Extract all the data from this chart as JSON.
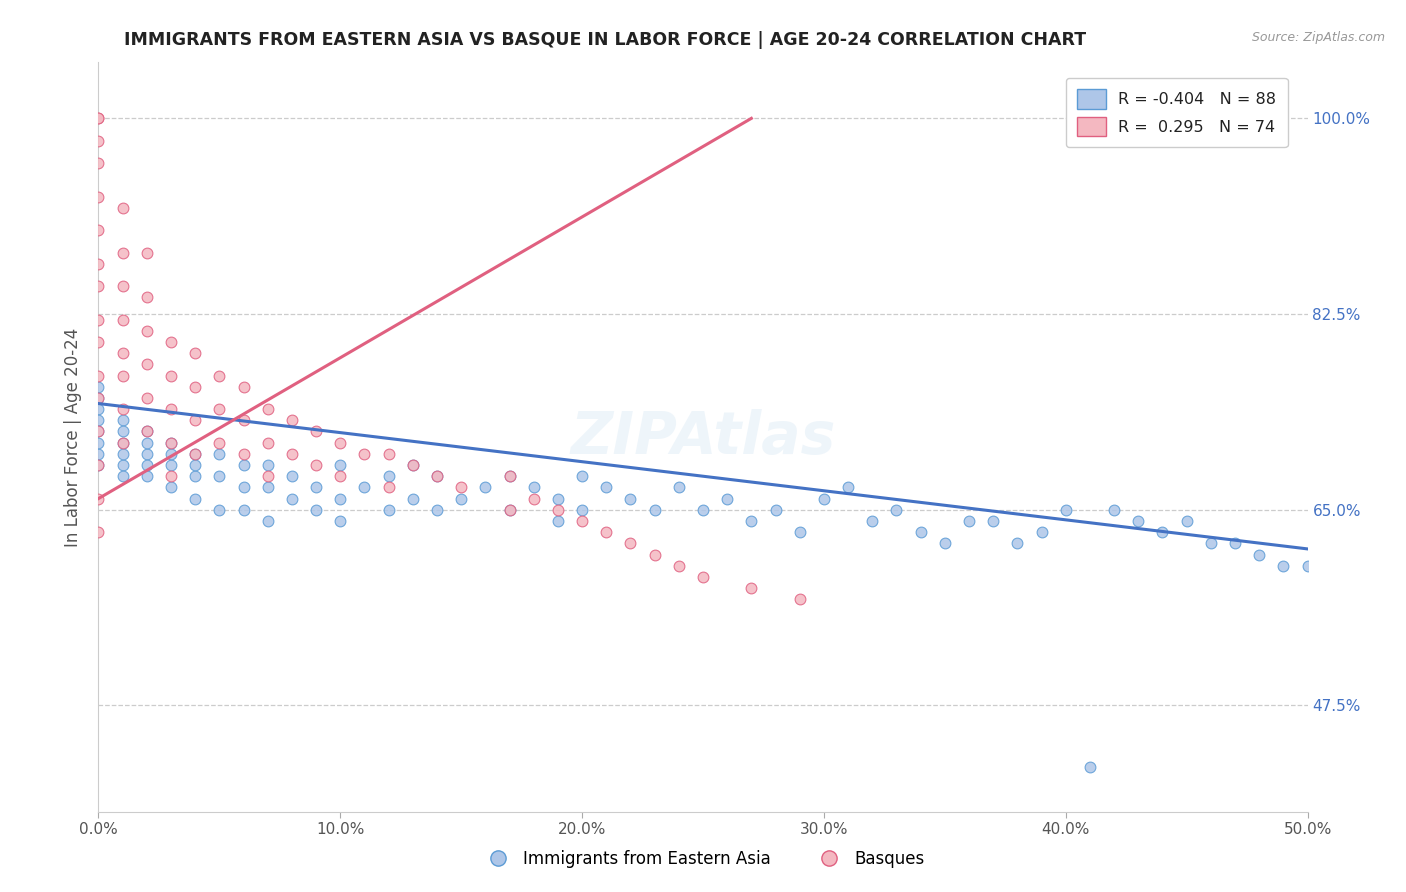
{
  "title": "IMMIGRANTS FROM EASTERN ASIA VS BASQUE IN LABOR FORCE | AGE 20-24 CORRELATION CHART",
  "source_text": "Source: ZipAtlas.com",
  "ylabel": "In Labor Force | Age 20-24",
  "xlim": [
    0.0,
    0.5
  ],
  "ylim": [
    0.38,
    1.05
  ],
  "ytick_vals": [
    0.475,
    0.65,
    0.825,
    1.0
  ],
  "ytick_labels_right": [
    "47.5%",
    "65.0%",
    "82.5%",
    "100.0%"
  ],
  "xtick_vals": [
    0.0,
    0.1,
    0.2,
    0.3,
    0.4,
    0.5
  ],
  "xtick_labels": [
    "0.0%",
    "10.0%",
    "20.0%",
    "30.0%",
    "40.0%",
    "50.0%"
  ],
  "scatter_color1": "#aec6e8",
  "scatter_edge1": "#5b9bd5",
  "scatter_color2": "#f4b8c1",
  "scatter_edge2": "#e06080",
  "line_color1": "#4472c4",
  "line_color2": "#e06080",
  "legend_color1": "#aec6e8",
  "legend_color2": "#f4b8c1",
  "legend_edge1": "#5b9bd5",
  "legend_edge2": "#e06080",
  "watermark": "ZIPAtlas",
  "background_color": "#ffffff",
  "grid_color": "#cccccc",
  "title_color": "#222222",
  "axis_label_color": "#555555",
  "tick_label_color_right": "#4472c4",
  "blue_line_x0": 0.0,
  "blue_line_x1": 0.5,
  "blue_line_y0": 0.745,
  "blue_line_y1": 0.615,
  "pink_line_x0": 0.0,
  "pink_line_x1": 0.27,
  "pink_line_y0": 0.66,
  "pink_line_y1": 1.0,
  "blue_x": [
    0.0,
    0.0,
    0.0,
    0.0,
    0.0,
    0.0,
    0.0,
    0.0,
    0.01,
    0.01,
    0.01,
    0.01,
    0.01,
    0.01,
    0.02,
    0.02,
    0.02,
    0.02,
    0.02,
    0.03,
    0.03,
    0.03,
    0.03,
    0.04,
    0.04,
    0.04,
    0.04,
    0.05,
    0.05,
    0.05,
    0.06,
    0.06,
    0.06,
    0.07,
    0.07,
    0.07,
    0.08,
    0.08,
    0.09,
    0.09,
    0.1,
    0.1,
    0.1,
    0.11,
    0.12,
    0.12,
    0.13,
    0.13,
    0.14,
    0.14,
    0.15,
    0.16,
    0.17,
    0.17,
    0.18,
    0.19,
    0.19,
    0.2,
    0.2,
    0.21,
    0.22,
    0.23,
    0.24,
    0.25,
    0.26,
    0.27,
    0.28,
    0.29,
    0.3,
    0.31,
    0.32,
    0.33,
    0.34,
    0.35,
    0.36,
    0.37,
    0.38,
    0.39,
    0.4,
    0.41,
    0.42,
    0.43,
    0.44,
    0.45,
    0.46,
    0.47,
    0.48,
    0.49,
    0.5
  ],
  "blue_y": [
    0.76,
    0.74,
    0.72,
    0.7,
    0.73,
    0.71,
    0.69,
    0.75,
    0.73,
    0.71,
    0.69,
    0.72,
    0.7,
    0.68,
    0.72,
    0.7,
    0.68,
    0.71,
    0.69,
    0.71,
    0.69,
    0.67,
    0.7,
    0.7,
    0.68,
    0.66,
    0.69,
    0.7,
    0.68,
    0.65,
    0.69,
    0.67,
    0.65,
    0.69,
    0.67,
    0.64,
    0.68,
    0.66,
    0.67,
    0.65,
    0.69,
    0.66,
    0.64,
    0.67,
    0.68,
    0.65,
    0.69,
    0.66,
    0.68,
    0.65,
    0.66,
    0.67,
    0.68,
    0.65,
    0.67,
    0.66,
    0.64,
    0.68,
    0.65,
    0.67,
    0.66,
    0.65,
    0.67,
    0.65,
    0.66,
    0.64,
    0.65,
    0.63,
    0.66,
    0.67,
    0.64,
    0.65,
    0.63,
    0.62,
    0.64,
    0.64,
    0.62,
    0.63,
    0.65,
    0.42,
    0.65,
    0.64,
    0.63,
    0.64,
    0.62,
    0.62,
    0.61,
    0.6,
    0.6
  ],
  "pink_x": [
    0.0,
    0.0,
    0.0,
    0.0,
    0.0,
    0.0,
    0.0,
    0.0,
    0.0,
    0.0,
    0.0,
    0.0,
    0.0,
    0.0,
    0.0,
    0.0,
    0.01,
    0.01,
    0.01,
    0.01,
    0.01,
    0.01,
    0.01,
    0.01,
    0.02,
    0.02,
    0.02,
    0.02,
    0.02,
    0.02,
    0.03,
    0.03,
    0.03,
    0.03,
    0.03,
    0.04,
    0.04,
    0.04,
    0.04,
    0.05,
    0.05,
    0.05,
    0.06,
    0.06,
    0.06,
    0.07,
    0.07,
    0.07,
    0.08,
    0.08,
    0.09,
    0.09,
    0.1,
    0.1,
    0.11,
    0.12,
    0.12,
    0.13,
    0.14,
    0.15,
    0.17,
    0.17,
    0.18,
    0.19,
    0.2,
    0.21,
    0.22,
    0.23,
    0.24,
    0.25,
    0.27,
    0.29
  ],
  "pink_y": [
    1.0,
    1.0,
    0.98,
    0.96,
    0.93,
    0.9,
    0.87,
    0.85,
    0.82,
    0.8,
    0.77,
    0.75,
    0.72,
    0.69,
    0.66,
    0.63,
    0.92,
    0.88,
    0.85,
    0.82,
    0.79,
    0.77,
    0.74,
    0.71,
    0.88,
    0.84,
    0.81,
    0.78,
    0.75,
    0.72,
    0.8,
    0.77,
    0.74,
    0.71,
    0.68,
    0.79,
    0.76,
    0.73,
    0.7,
    0.77,
    0.74,
    0.71,
    0.76,
    0.73,
    0.7,
    0.74,
    0.71,
    0.68,
    0.73,
    0.7,
    0.72,
    0.69,
    0.71,
    0.68,
    0.7,
    0.7,
    0.67,
    0.69,
    0.68,
    0.67,
    0.68,
    0.65,
    0.66,
    0.65,
    0.64,
    0.63,
    0.62,
    0.61,
    0.6,
    0.59,
    0.58,
    0.57
  ]
}
